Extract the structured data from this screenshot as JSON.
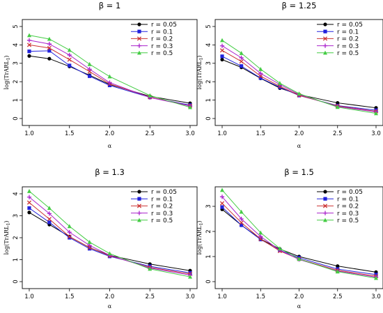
{
  "chart_data": [
    {
      "type": "line",
      "title": "β = 1",
      "xlabel": "α",
      "ylabel": "log(TrARL",
      "ylabel_sub": "1",
      "ylabel_close": ")",
      "xlim": [
        1.0,
        3.0
      ],
      "ylim": [
        0,
        5
      ],
      "xticks": [
        "1.0",
        "1.5",
        "2.0",
        "2.5",
        "3.0"
      ],
      "yticks": [
        "0",
        "1",
        "2",
        "3",
        "4",
        "5"
      ],
      "x": [
        1.0,
        1.25,
        1.5,
        1.75,
        2.0,
        2.5,
        3.0
      ],
      "legend_position": "top-right",
      "series": [
        {
          "name": "r = 0.05",
          "color": "#000000",
          "marker": "circle",
          "values": [
            3.4,
            3.25,
            2.83,
            2.35,
            1.85,
            1.21,
            0.83
          ]
        },
        {
          "name": "r = 0.1",
          "color": "#2222dd",
          "marker": "square",
          "values": [
            3.65,
            3.68,
            2.88,
            2.3,
            1.8,
            1.15,
            0.73
          ]
        },
        {
          "name": "r = 0.2",
          "color": "#cc3333",
          "marker": "x",
          "values": [
            4.0,
            3.83,
            3.2,
            2.55,
            1.88,
            1.16,
            0.69
          ]
        },
        {
          "name": "r = 0.3",
          "color": "#aa22cc",
          "marker": "plus",
          "values": [
            4.25,
            4.05,
            3.45,
            2.68,
            1.95,
            1.14,
            0.68
          ]
        },
        {
          "name": "r = 0.5",
          "color": "#44cc44",
          "marker": "triangle",
          "values": [
            4.52,
            4.32,
            3.72,
            2.95,
            2.28,
            1.25,
            0.61
          ]
        }
      ]
    },
    {
      "type": "line",
      "title": "β = 1.25",
      "xlabel": "α",
      "ylabel": "log(TrARL",
      "ylabel_sub": "1",
      "ylabel_close": ")",
      "xlim": [
        1.0,
        3.0
      ],
      "ylim": [
        0,
        5
      ],
      "xticks": [
        "1.0",
        "1.5",
        "2.0",
        "2.5",
        "3.0"
      ],
      "yticks": [
        "0",
        "1",
        "2",
        "3",
        "4",
        "5"
      ],
      "x": [
        1.0,
        1.25,
        1.5,
        1.75,
        2.0,
        2.5,
        3.0
      ],
      "legend_position": "top-right",
      "series": [
        {
          "name": "r = 0.05",
          "color": "#000000",
          "marker": "circle",
          "values": [
            3.2,
            2.78,
            2.18,
            1.65,
            1.3,
            0.85,
            0.58
          ]
        },
        {
          "name": "r = 0.1",
          "color": "#2222dd",
          "marker": "square",
          "values": [
            3.38,
            2.85,
            2.2,
            1.7,
            1.25,
            0.7,
            0.45
          ]
        },
        {
          "name": "r = 0.2",
          "color": "#cc3333",
          "marker": "x",
          "values": [
            3.7,
            3.1,
            2.3,
            1.75,
            1.26,
            0.68,
            0.39
          ]
        },
        {
          "name": "r = 0.3",
          "color": "#aa22cc",
          "marker": "plus",
          "values": [
            3.95,
            3.3,
            2.45,
            1.85,
            1.3,
            0.65,
            0.36
          ]
        },
        {
          "name": "r = 0.5",
          "color": "#44cc44",
          "marker": "triangle",
          "values": [
            4.25,
            3.55,
            2.68,
            1.92,
            1.35,
            0.62,
            0.28
          ]
        }
      ]
    },
    {
      "type": "line",
      "title": "β = 1.3",
      "xlabel": "α",
      "ylabel": "log(TrARL",
      "ylabel_sub": "1",
      "ylabel_close": ")",
      "xlim": [
        1.0,
        3.0
      ],
      "ylim": [
        0,
        4
      ],
      "xticks": [
        "1.0",
        "1.5",
        "2.0",
        "2.5",
        "3.0"
      ],
      "yticks": [
        "0",
        "1",
        "2",
        "3",
        "4"
      ],
      "x": [
        1.0,
        1.25,
        1.5,
        1.75,
        2.0,
        2.5,
        3.0
      ],
      "legend_position": "top-right",
      "series": [
        {
          "name": "r = 0.05",
          "color": "#000000",
          "marker": "circle",
          "values": [
            3.15,
            2.6,
            2.05,
            1.55,
            1.2,
            0.8,
            0.5
          ]
        },
        {
          "name": "r = 0.1",
          "color": "#2222dd",
          "marker": "square",
          "values": [
            3.35,
            2.7,
            2.0,
            1.5,
            1.15,
            0.7,
            0.4
          ]
        },
        {
          "name": "r = 0.2",
          "color": "#cc3333",
          "marker": "x",
          "values": [
            3.6,
            2.85,
            2.05,
            1.55,
            1.18,
            0.65,
            0.35
          ]
        },
        {
          "name": "r = 0.3",
          "color": "#aa22cc",
          "marker": "plus",
          "values": [
            3.85,
            3.1,
            2.25,
            1.65,
            1.2,
            0.62,
            0.3
          ]
        },
        {
          "name": "r = 0.5",
          "color": "#44cc44",
          "marker": "triangle",
          "values": [
            4.12,
            3.35,
            2.52,
            1.8,
            1.28,
            0.58,
            0.22
          ]
        }
      ]
    },
    {
      "type": "line",
      "title": "β = 1.5",
      "xlabel": "α",
      "ylabel": "log(TrARL",
      "ylabel_sub": "1",
      "ylabel_close": ")",
      "xlim": [
        1.0,
        3.0
      ],
      "ylim": [
        0,
        3.5
      ],
      "xticks": [
        "1.0",
        "1.5",
        "2.0",
        "2.5",
        "3.0"
      ],
      "yticks": [
        "0",
        "1",
        "2",
        "3"
      ],
      "x": [
        1.0,
        1.25,
        1.5,
        1.75,
        2.0,
        2.5,
        3.0
      ],
      "legend_position": "top-right",
      "series": [
        {
          "name": "r = 0.05",
          "color": "#000000",
          "marker": "circle",
          "values": [
            2.88,
            2.25,
            1.7,
            1.3,
            1.0,
            0.62,
            0.38
          ]
        },
        {
          "name": "r = 0.1",
          "color": "#2222dd",
          "marker": "square",
          "values": [
            2.97,
            2.25,
            1.68,
            1.25,
            0.95,
            0.5,
            0.28
          ]
        },
        {
          "name": "r = 0.2",
          "color": "#cc3333",
          "marker": "x",
          "values": [
            3.12,
            2.35,
            1.7,
            1.22,
            0.9,
            0.45,
            0.22
          ]
        },
        {
          "name": "r = 0.3",
          "color": "#aa22cc",
          "marker": "plus",
          "values": [
            3.38,
            2.5,
            1.8,
            1.25,
            0.88,
            0.42,
            0.18
          ]
        },
        {
          "name": "r = 0.5",
          "color": "#44cc44",
          "marker": "triangle",
          "values": [
            3.65,
            2.78,
            1.95,
            1.32,
            0.9,
            0.4,
            0.14
          ]
        }
      ]
    }
  ]
}
